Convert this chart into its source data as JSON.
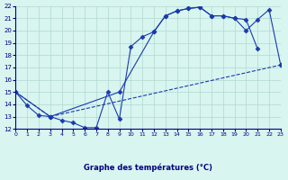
{
  "xlabel": "Graphe des températures (°C)",
  "background_color": "#d8f5f0",
  "grid_color": "#b0d8d0",
  "line_color": "#1a3aad",
  "xlim": [
    0,
    23
  ],
  "ylim": [
    12,
    22
  ],
  "yticks": [
    12,
    13,
    14,
    15,
    16,
    17,
    18,
    19,
    20,
    21,
    22
  ],
  "xticks": [
    0,
    1,
    2,
    3,
    4,
    5,
    6,
    7,
    8,
    9,
    10,
    11,
    12,
    13,
    14,
    15,
    16,
    17,
    18,
    19,
    20,
    21,
    22,
    23
  ],
  "line1_x": [
    0,
    1,
    2,
    3,
    4,
    5,
    6,
    7,
    8,
    9,
    10,
    11,
    12,
    13,
    14,
    15,
    16,
    17,
    18,
    19,
    20,
    21
  ],
  "line1_y": [
    15.0,
    13.9,
    13.1,
    13.0,
    12.7,
    12.5,
    12.1,
    12.1,
    15.0,
    12.8,
    18.7,
    19.5,
    19.9,
    21.2,
    21.6,
    21.8,
    21.9,
    21.2,
    21.2,
    21.0,
    20.9,
    18.5
  ],
  "line2_x": [
    0,
    3,
    9,
    12,
    13,
    14,
    15,
    16,
    17,
    18,
    19,
    20,
    21,
    22,
    23
  ],
  "line2_y": [
    15.0,
    13.0,
    15.0,
    19.9,
    21.2,
    21.6,
    21.8,
    21.9,
    21.2,
    21.2,
    21.0,
    20.0,
    20.9,
    21.7,
    17.2
  ],
  "line3_x": [
    0,
    3,
    23
  ],
  "line3_y": [
    15.0,
    13.0,
    17.2
  ]
}
